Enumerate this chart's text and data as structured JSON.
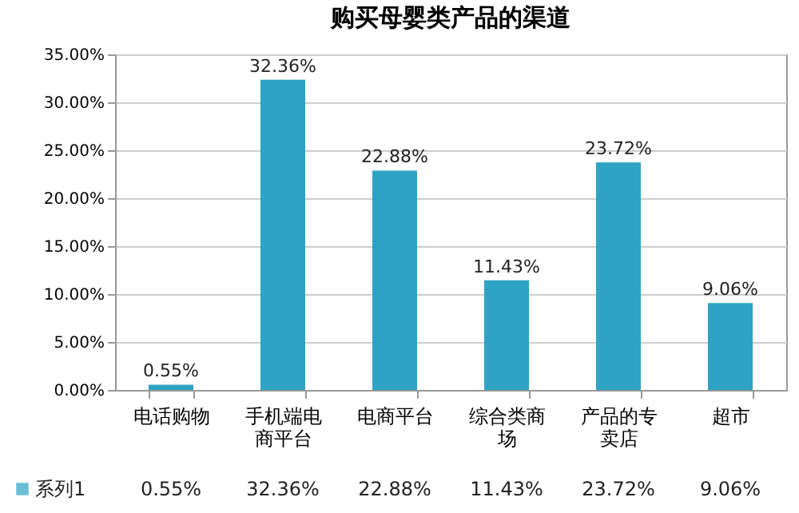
{
  "chart_data": {
    "type": "bar",
    "title": "购买母婴类产品的渠道",
    "categories": [
      "电话购物",
      "手机端电商平台",
      "电商平台",
      "综合类商场",
      "产品的专卖店",
      "超市"
    ],
    "series": [
      {
        "name": "系列1",
        "color": "#2ea3c4",
        "values": [
          0.55,
          32.36,
          22.88,
          11.43,
          23.72,
          9.06
        ],
        "value_labels": [
          "0.55%",
          "32.36%",
          "22.88%",
          "11.43%",
          "23.72%",
          "9.06%"
        ]
      }
    ],
    "ylim": [
      0,
      35
    ],
    "yticks": [
      {
        "value": 0,
        "label": "0.00%"
      },
      {
        "value": 5,
        "label": "5.00%"
      },
      {
        "value": 10,
        "label": "10.00%"
      },
      {
        "value": 15,
        "label": "15.00%"
      },
      {
        "value": 20,
        "label": "20.00%"
      },
      {
        "value": 25,
        "label": "25.00%"
      },
      {
        "value": 30,
        "label": "30.00%"
      },
      {
        "value": 35,
        "label": "35.00%"
      }
    ],
    "grid": "y",
    "legend": "bottom left"
  }
}
